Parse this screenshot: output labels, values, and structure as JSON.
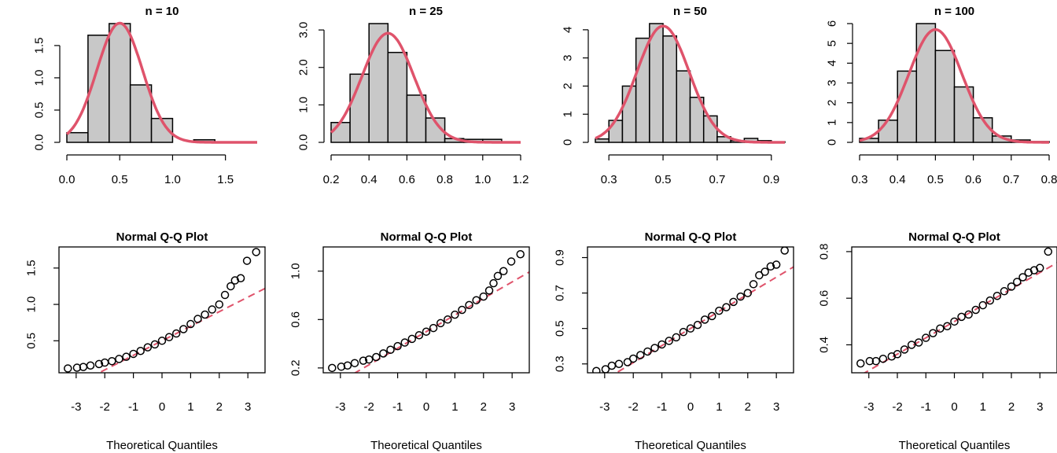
{
  "chart_data": [
    {
      "type": "bar",
      "title": "n = 10",
      "xlabel": "",
      "ylabel": "",
      "bin_edges": [
        0.0,
        0.2,
        0.4,
        0.6,
        0.8,
        1.0,
        1.2,
        1.4
      ],
      "values": [
        0.15,
        1.66,
        1.84,
        0.89,
        0.37,
        0.0,
        0.04
      ],
      "xlim": [
        0.0,
        1.8
      ],
      "ylim": [
        0,
        1.84
      ],
      "xticks": [
        "0.0",
        "0.5",
        "1.0",
        "1.5"
      ],
      "xtick_values": [
        0.0,
        0.5,
        1.0,
        1.5
      ],
      "yticks": [
        "0.0",
        "0.5",
        "1.0",
        "1.5"
      ],
      "ytick_values": [
        0.0,
        0.5,
        1.0,
        1.5
      ],
      "overlay": {
        "type": "normal_density",
        "mean": 0.5,
        "sd": 0.216,
        "color": "#DF536B"
      }
    },
    {
      "type": "bar",
      "title": "n = 25",
      "xlabel": "",
      "ylabel": "",
      "bin_edges": [
        0.2,
        0.3,
        0.4,
        0.5,
        0.6,
        0.7,
        0.8,
        0.9,
        1.0,
        1.1
      ],
      "values": [
        0.53,
        1.82,
        3.17,
        2.4,
        1.26,
        0.65,
        0.1,
        0.08,
        0.08
      ],
      "xlim": [
        0.2,
        1.2
      ],
      "ylim": [
        0,
        3.17
      ],
      "xticks": [
        "0.2",
        "0.4",
        "0.6",
        "0.8",
        "1.0",
        "1.2"
      ],
      "xtick_values": [
        0.2,
        0.4,
        0.6,
        0.8,
        1.0,
        1.2
      ],
      "yticks": [
        "0.0",
        "1.0",
        "2.0",
        "3.0"
      ],
      "ytick_values": [
        0.0,
        1.0,
        2.0,
        3.0
      ],
      "overlay": {
        "type": "normal_density",
        "mean": 0.5,
        "sd": 0.137,
        "color": "#DF536B"
      }
    },
    {
      "type": "bar",
      "title": "n = 50",
      "xlabel": "",
      "ylabel": "",
      "bin_edges": [
        0.25,
        0.3,
        0.35,
        0.4,
        0.45,
        0.5,
        0.55,
        0.6,
        0.65,
        0.7,
        0.75,
        0.8,
        0.85,
        0.9,
        0.95
      ],
      "values": [
        0.12,
        0.78,
        2.0,
        3.7,
        4.22,
        3.78,
        2.54,
        1.6,
        0.94,
        0.2,
        0.06,
        0.14,
        0.06,
        0.02
      ],
      "xlim": [
        0.25,
        0.95
      ],
      "ylim": [
        0,
        4.22
      ],
      "xticks": [
        "0.3",
        "0.5",
        "0.7",
        "0.9"
      ],
      "xtick_values": [
        0.3,
        0.5,
        0.7,
        0.9
      ],
      "yticks": [
        "0",
        "1",
        "2",
        "3",
        "4"
      ],
      "ytick_values": [
        0,
        1,
        2,
        3,
        4
      ],
      "overlay": {
        "type": "normal_density",
        "mean": 0.5,
        "sd": 0.0965,
        "color": "#DF536B"
      }
    },
    {
      "type": "bar",
      "title": "n = 100",
      "xlabel": "",
      "ylabel": "",
      "bin_edges": [
        0.3,
        0.35,
        0.4,
        0.45,
        0.5,
        0.55,
        0.6,
        0.65,
        0.7,
        0.75,
        0.8
      ],
      "values": [
        0.2,
        1.12,
        3.6,
        6.0,
        4.64,
        2.8,
        1.24,
        0.32,
        0.12,
        0.04
      ],
      "xlim": [
        0.3,
        0.8
      ],
      "ylim": [
        0,
        6.0
      ],
      "xticks": [
        "0.3",
        "0.4",
        "0.5",
        "0.6",
        "0.7",
        "0.8"
      ],
      "xtick_values": [
        0.3,
        0.4,
        0.5,
        0.6,
        0.7,
        0.8
      ],
      "yticks": [
        "0",
        "1",
        "2",
        "3",
        "4",
        "5",
        "6"
      ],
      "ytick_values": [
        0,
        1,
        2,
        3,
        4,
        5,
        6
      ],
      "overlay": {
        "type": "normal_density",
        "mean": 0.5,
        "sd": 0.07,
        "color": "#DF536B"
      }
    },
    {
      "type": "scatter",
      "title": "Normal Q-Q Plot",
      "xlabel": "Theoretical Quantiles",
      "ylabel": "",
      "xlim": [
        -3.6,
        3.6
      ],
      "ylim": [
        0.06,
        1.79
      ],
      "xticks": [
        "-3",
        "-2",
        "-1",
        "0",
        "1",
        "2",
        "3"
      ],
      "xtick_values": [
        -3,
        -2,
        -1,
        0,
        1,
        2,
        3
      ],
      "yticks": [
        "0.5",
        "1.0",
        "1.5"
      ],
      "ytick_values": [
        0.5,
        1.0,
        1.5
      ],
      "qq_points": [
        [
          -3.29,
          0.12
        ],
        [
          -2.97,
          0.13
        ],
        [
          -2.75,
          0.14
        ],
        [
          -2.5,
          0.16
        ],
        [
          -2.2,
          0.18
        ],
        [
          -2.0,
          0.2
        ],
        [
          -1.75,
          0.22
        ],
        [
          -1.5,
          0.25
        ],
        [
          -1.25,
          0.28
        ],
        [
          -1.0,
          0.32
        ],
        [
          -0.75,
          0.36
        ],
        [
          -0.5,
          0.41
        ],
        [
          -0.25,
          0.45
        ],
        [
          0.0,
          0.5
        ],
        [
          0.25,
          0.55
        ],
        [
          0.5,
          0.6
        ],
        [
          0.75,
          0.66
        ],
        [
          1.0,
          0.73
        ],
        [
          1.25,
          0.8
        ],
        [
          1.5,
          0.86
        ],
        [
          1.75,
          0.93
        ],
        [
          2.0,
          1.0
        ],
        [
          2.2,
          1.13
        ],
        [
          2.4,
          1.25
        ],
        [
          2.55,
          1.33
        ],
        [
          2.75,
          1.36
        ],
        [
          2.97,
          1.6
        ],
        [
          3.29,
          1.72
        ]
      ],
      "qq_line": {
        "intercept": 0.5,
        "slope": 0.2,
        "color": "#DF536B",
        "style": "dashed"
      }
    },
    {
      "type": "scatter",
      "title": "Normal Q-Q Plot",
      "xlabel": "Theoretical Quantiles",
      "ylabel": "",
      "xlim": [
        -3.6,
        3.6
      ],
      "ylim": [
        0.16,
        1.2
      ],
      "xticks": [
        "-3",
        "-2",
        "-1",
        "0",
        "1",
        "2",
        "3"
      ],
      "xtick_values": [
        -3,
        -2,
        -1,
        0,
        1,
        2,
        3
      ],
      "yticks": [
        "0.2",
        "0.6",
        "1.0"
      ],
      "ytick_values": [
        0.2,
        0.6,
        1.0
      ],
      "qq_points": [
        [
          -3.29,
          0.2
        ],
        [
          -2.97,
          0.21
        ],
        [
          -2.75,
          0.22
        ],
        [
          -2.5,
          0.24
        ],
        [
          -2.2,
          0.26
        ],
        [
          -2.0,
          0.27
        ],
        [
          -1.75,
          0.29
        ],
        [
          -1.5,
          0.32
        ],
        [
          -1.25,
          0.35
        ],
        [
          -1.0,
          0.38
        ],
        [
          -0.75,
          0.41
        ],
        [
          -0.5,
          0.44
        ],
        [
          -0.25,
          0.47
        ],
        [
          0.0,
          0.5
        ],
        [
          0.25,
          0.53
        ],
        [
          0.5,
          0.57
        ],
        [
          0.75,
          0.6
        ],
        [
          1.0,
          0.64
        ],
        [
          1.25,
          0.68
        ],
        [
          1.5,
          0.72
        ],
        [
          1.75,
          0.76
        ],
        [
          2.0,
          0.79
        ],
        [
          2.2,
          0.84
        ],
        [
          2.35,
          0.9
        ],
        [
          2.5,
          0.96
        ],
        [
          2.7,
          1.0
        ],
        [
          2.97,
          1.08
        ],
        [
          3.29,
          1.14
        ]
      ],
      "qq_line": {
        "intercept": 0.5,
        "slope": 0.137,
        "color": "#DF536B",
        "style": "dashed"
      }
    },
    {
      "type": "scatter",
      "title": "Normal Q-Q Plot",
      "xlabel": "Theoretical Quantiles",
      "ylabel": "",
      "xlim": [
        -3.6,
        3.6
      ],
      "ylim": [
        0.25,
        0.96
      ],
      "xticks": [
        "-3",
        "-2",
        "-1",
        "0",
        "1",
        "2",
        "3"
      ],
      "xtick_values": [
        -3,
        -2,
        -1,
        0,
        1,
        2,
        3
      ],
      "yticks": [
        "0.3",
        "0.5",
        "0.7",
        "0.9"
      ],
      "ytick_values": [
        0.3,
        0.5,
        0.7,
        0.9
      ],
      "qq_points": [
        [
          -3.29,
          0.26
        ],
        [
          -2.97,
          0.27
        ],
        [
          -2.75,
          0.29
        ],
        [
          -2.5,
          0.3
        ],
        [
          -2.2,
          0.31
        ],
        [
          -2.0,
          0.33
        ],
        [
          -1.75,
          0.35
        ],
        [
          -1.5,
          0.37
        ],
        [
          -1.25,
          0.39
        ],
        [
          -1.0,
          0.41
        ],
        [
          -0.75,
          0.43
        ],
        [
          -0.5,
          0.45
        ],
        [
          -0.25,
          0.48
        ],
        [
          0.0,
          0.5
        ],
        [
          0.25,
          0.52
        ],
        [
          0.5,
          0.55
        ],
        [
          0.75,
          0.57
        ],
        [
          1.0,
          0.6
        ],
        [
          1.25,
          0.62
        ],
        [
          1.5,
          0.65
        ],
        [
          1.75,
          0.68
        ],
        [
          2.0,
          0.7
        ],
        [
          2.2,
          0.75
        ],
        [
          2.4,
          0.8
        ],
        [
          2.6,
          0.82
        ],
        [
          2.8,
          0.85
        ],
        [
          3.0,
          0.86
        ],
        [
          3.29,
          0.94
        ]
      ],
      "qq_line": {
        "intercept": 0.5,
        "slope": 0.0965,
        "color": "#DF536B",
        "style": "dashed"
      }
    },
    {
      "type": "scatter",
      "title": "Normal Q-Q Plot",
      "xlabel": "Theoretical Quantiles",
      "ylabel": "",
      "xlim": [
        -3.6,
        3.6
      ],
      "ylim": [
        0.28,
        0.82
      ],
      "xticks": [
        "-3",
        "-2",
        "-1",
        "0",
        "1",
        "2",
        "3"
      ],
      "xtick_values": [
        -3,
        -2,
        -1,
        0,
        1,
        2,
        3
      ],
      "yticks": [
        "0.4",
        "0.6",
        "0.8"
      ],
      "ytick_values": [
        0.4,
        0.6,
        0.8
      ],
      "qq_points": [
        [
          -3.29,
          0.32
        ],
        [
          -2.97,
          0.33
        ],
        [
          -2.75,
          0.33
        ],
        [
          -2.5,
          0.34
        ],
        [
          -2.2,
          0.35
        ],
        [
          -2.0,
          0.36
        ],
        [
          -1.75,
          0.38
        ],
        [
          -1.5,
          0.4
        ],
        [
          -1.25,
          0.41
        ],
        [
          -1.0,
          0.43
        ],
        [
          -0.75,
          0.45
        ],
        [
          -0.5,
          0.47
        ],
        [
          -0.25,
          0.48
        ],
        [
          0.0,
          0.5
        ],
        [
          0.25,
          0.52
        ],
        [
          0.5,
          0.53
        ],
        [
          0.75,
          0.55
        ],
        [
          1.0,
          0.57
        ],
        [
          1.25,
          0.59
        ],
        [
          1.5,
          0.61
        ],
        [
          1.75,
          0.63
        ],
        [
          2.0,
          0.65
        ],
        [
          2.2,
          0.67
        ],
        [
          2.4,
          0.69
        ],
        [
          2.6,
          0.71
        ],
        [
          2.8,
          0.72
        ],
        [
          3.0,
          0.73
        ],
        [
          3.29,
          0.8
        ]
      ],
      "qq_line": {
        "intercept": 0.5,
        "slope": 0.07,
        "color": "#DF536B",
        "style": "dashed"
      }
    }
  ]
}
